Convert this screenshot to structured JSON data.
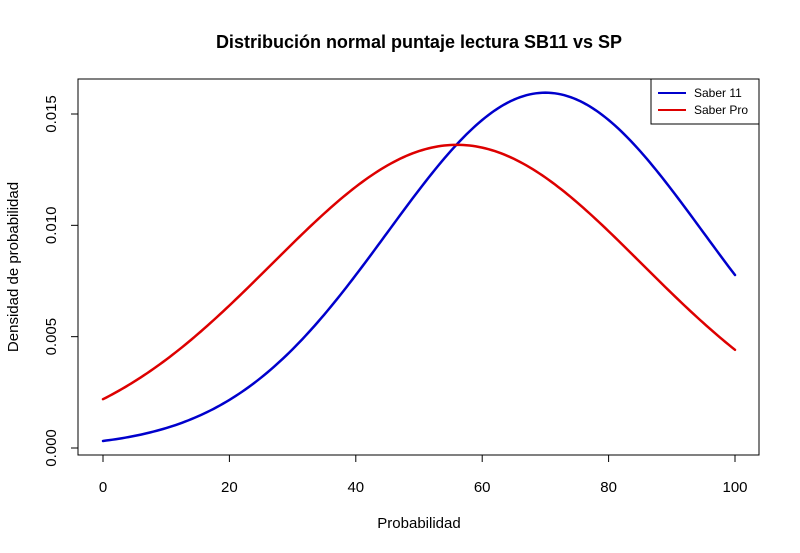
{
  "chart_data": {
    "type": "line",
    "title": "Distribución normal puntaje lectura SB11 vs SP",
    "xlabel": "Probabilidad",
    "ylabel": "Densidad de probabilidad",
    "xlim": [
      0,
      100
    ],
    "ylim": [
      0,
      0.016
    ],
    "x_ticks": [
      0,
      20,
      40,
      60,
      80,
      100
    ],
    "x_tick_labels": [
      "0",
      "20",
      "40",
      "60",
      "80",
      "100"
    ],
    "y_ticks": [
      0,
      0.005,
      0.01,
      0.015
    ],
    "y_tick_labels": [
      "0.000",
      "0.005",
      "0.010",
      "0.015"
    ],
    "grid": false,
    "legend_position": "top-right",
    "series": [
      {
        "name": "Saber 11",
        "color": "#0000cc",
        "distribution": "normal",
        "mean": 70,
        "sd": 25,
        "x": [
          0,
          10,
          20,
          30,
          40,
          50,
          60,
          70,
          80,
          90,
          100
        ],
        "y": [
          0.0003,
          0.0009,
          0.0022,
          0.0044,
          0.0078,
          0.0116,
          0.0148,
          0.016,
          0.0148,
          0.0116,
          0.0078
        ]
      },
      {
        "name": "Saber Pro",
        "color": "#dd0000",
        "distribution": "normal",
        "mean": 56,
        "sd": 29.3,
        "x": [
          0,
          10,
          20,
          30,
          40,
          50,
          60,
          70,
          80,
          90,
          100
        ],
        "y": [
          0.0021,
          0.004,
          0.0064,
          0.0092,
          0.0117,
          0.0133,
          0.0136,
          0.0121,
          0.0097,
          0.0069,
          0.0045
        ]
      }
    ]
  }
}
